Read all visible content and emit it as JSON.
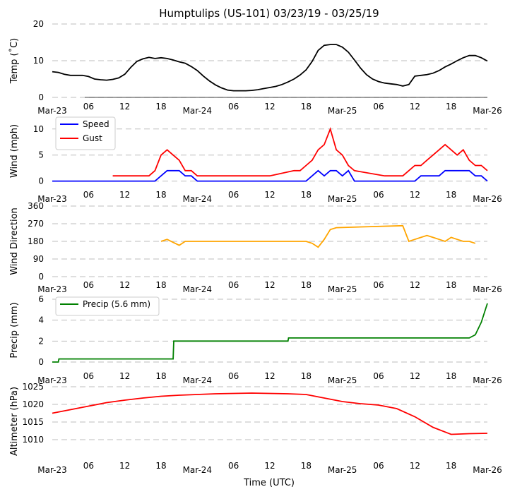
{
  "chart_data": {
    "type": "line",
    "title": "Humptulips (US-101) 03/23/19 - 03/25/19",
    "xlabel": "Time (UTC)",
    "x_range_hours": [
      0,
      72
    ],
    "x_ticks": [
      {
        "h": 0,
        "label": "Mar-23"
      },
      {
        "h": 6,
        "label": "06"
      },
      {
        "h": 12,
        "label": "12"
      },
      {
        "h": 18,
        "label": "18"
      },
      {
        "h": 24,
        "label": "Mar-24"
      },
      {
        "h": 30,
        "label": "06"
      },
      {
        "h": 36,
        "label": "12"
      },
      {
        "h": 42,
        "label": "18"
      },
      {
        "h": 48,
        "label": "Mar-25"
      },
      {
        "h": 54,
        "label": "06"
      },
      {
        "h": 60,
        "label": "12"
      },
      {
        "h": 66,
        "label": "18"
      },
      {
        "h": 72,
        "label": "Mar-26"
      }
    ],
    "panels": [
      {
        "ylabel": "Temp ($^\\circ$C)",
        "ylabel_display": "Temp (˚C)",
        "ylim": [
          0,
          20
        ],
        "yticks": [
          0,
          10,
          20
        ],
        "series": [
          {
            "name": "Temp",
            "color": "#000000",
            "x": [
              0,
              1,
              2,
              3,
              4,
              5,
              6,
              7,
              8,
              9,
              10,
              11,
              12,
              13,
              14,
              15,
              16,
              17,
              18,
              19,
              20,
              21,
              22,
              23,
              24,
              25,
              26,
              27,
              28,
              29,
              30,
              31,
              32,
              33,
              34,
              35,
              36,
              37,
              38,
              39,
              40,
              41,
              42,
              43,
              44,
              45,
              46,
              47,
              48,
              49,
              50,
              51,
              52,
              53,
              54,
              55,
              56,
              57,
              58,
              59,
              60,
              61,
              62,
              63,
              64,
              65,
              66,
              67,
              68,
              69,
              70,
              71,
              72
            ],
            "y": [
              7,
              6.8,
              6.3,
              6.0,
              6.0,
              6.0,
              5.7,
              5.0,
              4.8,
              4.7,
              4.9,
              5.3,
              6.3,
              8.2,
              9.8,
              10.5,
              10.9,
              10.6,
              10.8,
              10.6,
              10.2,
              9.7,
              9.3,
              8.4,
              7.3,
              5.8,
              4.5,
              3.4,
              2.6,
              2.0,
              1.8,
              1.8,
              1.8,
              1.9,
              2.1,
              2.4,
              2.7,
              3.0,
              3.5,
              4.2,
              5.0,
              6.1,
              7.5,
              9.8,
              12.8,
              14.2,
              14.4,
              14.4,
              13.7,
              12.3,
              10.2,
              8.0,
              6.2,
              5.0,
              4.3,
              3.9,
              3.7,
              3.5,
              3.1,
              3.5,
              5.8,
              6.0,
              6.2,
              6.6,
              7.3,
              8.3,
              9.1,
              10.0,
              10.8,
              11.4,
              11.4,
              10.8,
              9.9
            ]
          }
        ]
      },
      {
        "ylabel": "Wind (mph)",
        "ylim": [
          -1,
          12
        ],
        "yticks": [
          0,
          5,
          10
        ],
        "legend": [
          "Speed",
          "Gust"
        ],
        "series": [
          {
            "name": "Speed",
            "color": "#0000ff",
            "x": [
              0,
              6,
              12,
              17,
              18,
              19,
              20,
              21,
              22,
              23,
              24,
              30,
              36,
              42,
              43,
              44,
              45,
              46,
              47,
              48,
              49,
              50,
              54,
              58,
              59,
              60,
              61,
              62,
              63,
              64,
              65,
              66,
              67,
              68,
              69,
              70,
              71,
              72
            ],
            "y": [
              0,
              0,
              0,
              0,
              1,
              2,
              2,
              2,
              1,
              1,
              0,
              0,
              0,
              0,
              1,
              2,
              1,
              2,
              2,
              1,
              2,
              0,
              0,
              0,
              0,
              0,
              1,
              1,
              1,
              1,
              2,
              2,
              2,
              2,
              2,
              1,
              1,
              0
            ]
          },
          {
            "name": "Gust",
            "color": "#ff0000",
            "x": [
              10,
              11,
              12,
              13,
              14,
              15,
              16,
              17,
              18,
              19,
              20,
              21,
              22,
              23,
              24,
              30,
              36,
              40,
              41,
              42,
              43,
              44,
              45,
              46,
              47,
              48,
              49,
              50,
              55,
              56,
              57,
              58,
              59,
              60,
              61,
              62,
              63,
              64,
              65,
              66,
              67,
              68,
              69,
              70,
              71,
              72
            ],
            "y": [
              1,
              1,
              1,
              1,
              1,
              1,
              1,
              2,
              5,
              6,
              5,
              4,
              2,
              2,
              1,
              1,
              1,
              2,
              2,
              3,
              4,
              6,
              7,
              10,
              6,
              5,
              3,
              2,
              1,
              1,
              1,
              1,
              2,
              3,
              3,
              4,
              5,
              6,
              7,
              6,
              5,
              6,
              4,
              3,
              3,
              2
            ]
          }
        ]
      },
      {
        "ylabel": "Wind Direction",
        "ylim": [
          0,
          360
        ],
        "yticks": [
          0,
          90,
          180,
          270,
          360
        ],
        "series": [
          {
            "name": "Direction",
            "color": "#ffa500",
            "x": [
              18,
              19,
              20,
              21,
              22,
              42,
              43,
              44,
              45,
              46,
              47,
              58,
              59,
              60,
              61,
              62,
              63,
              64,
              65,
              66,
              67,
              68,
              69,
              70
            ],
            "y": [
              180,
              190,
              175,
              160,
              180,
              180,
              170,
              150,
              190,
              240,
              250,
              260,
              180,
              190,
              200,
              210,
              200,
              190,
              180,
              200,
              190,
              180,
              180,
              170
            ]
          }
        ]
      },
      {
        "ylabel": "Precip (mm)",
        "ylim": [
          0,
          6
        ],
        "yticks": [
          0,
          2,
          4,
          6
        ],
        "legend": [
          "Precip (5.6 mm)"
        ],
        "series": [
          {
            "name": "Precip (5.6 mm)",
            "color": "#008000",
            "x": [
              0,
              1,
              1.1,
              6,
              12,
              18,
              19,
              20,
              20.1,
              24,
              30,
              36,
              38,
              39,
              39.1,
              42,
              48,
              54,
              60,
              66,
              69,
              70,
              71,
              72
            ],
            "y": [
              0,
              0,
              0.3,
              0.3,
              0.3,
              0.3,
              0.3,
              0.3,
              2.0,
              2.0,
              2.0,
              2.0,
              2.0,
              2.0,
              2.3,
              2.3,
              2.3,
              2.3,
              2.3,
              2.3,
              2.3,
              2.6,
              3.8,
              5.6
            ]
          }
        ]
      },
      {
        "ylabel": "Altimeter (hPa)",
        "ylim": [
          1005,
          1025
        ],
        "yticks": [
          1010,
          1015,
          1020,
          1025
        ],
        "series": [
          {
            "name": "Altimeter",
            "color": "#ff0000",
            "x": [
              0,
              3,
              6,
              9,
              12,
              15,
              18,
              21,
              24,
              27,
              30,
              33,
              36,
              39,
              42,
              45,
              48,
              51,
              54,
              57,
              60,
              63,
              66,
              69,
              72
            ],
            "y": [
              1017.5,
              1018.5,
              1019.5,
              1020.5,
              1021.2,
              1021.8,
              1022.3,
              1022.6,
              1022.8,
              1023.0,
              1023.1,
              1023.2,
              1023.1,
              1023.0,
              1022.8,
              1021.8,
              1020.8,
              1020.2,
              1019.8,
              1018.8,
              1016.5,
              1013.5,
              1011.5,
              1011.7,
              1011.8
            ]
          }
        ]
      }
    ]
  }
}
